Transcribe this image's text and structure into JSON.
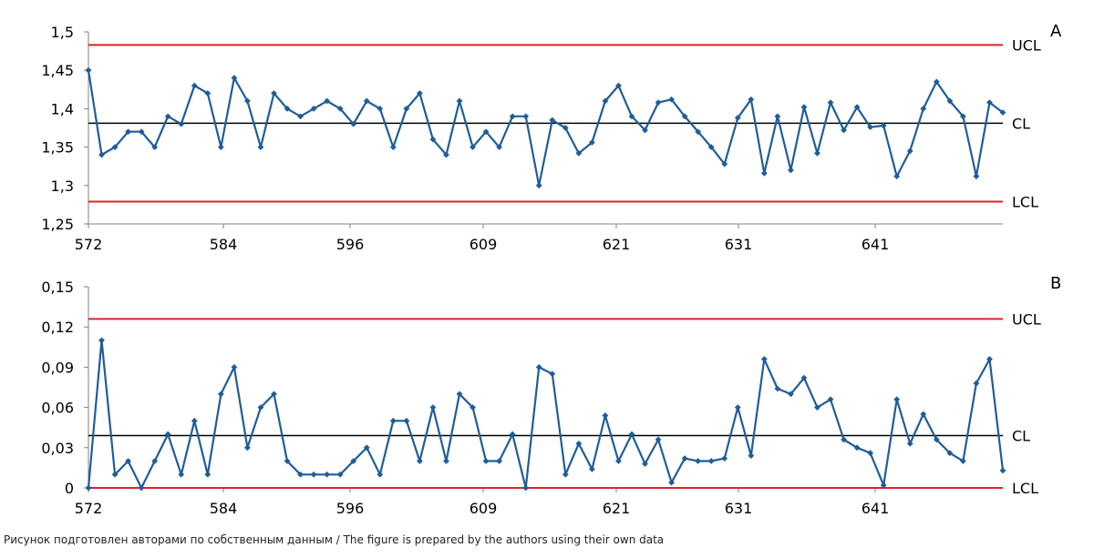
{
  "caption": "Рисунок подготовлен авторами по собственным данным / The figure is prepared by the authors using their own data",
  "colors": {
    "series": "#1f5d99",
    "control_limit": "#e0202a",
    "center_line": "#000000",
    "axis": "#808080"
  },
  "chart_data": [
    {
      "type": "line",
      "panel_label": "A",
      "x_tick_labels": [
        "572",
        "584",
        "596",
        "609",
        "621",
        "631",
        "641"
      ],
      "y_ticks": [
        "1,25",
        "1,3",
        "1,35",
        "1,4",
        "1,45",
        "1,5"
      ],
      "ylim": [
        1.25,
        1.5
      ],
      "control_lines": [
        {
          "label": "UCL",
          "value": 1.483,
          "kind": "limit"
        },
        {
          "label": "CL",
          "value": 1.381,
          "kind": "center"
        },
        {
          "label": "LCL",
          "value": 1.279,
          "kind": "limit"
        }
      ],
      "series": [
        {
          "values": [
            1.45,
            1.34,
            1.35,
            1.37,
            1.37,
            1.35,
            1.39,
            1.38,
            1.43,
            1.42,
            1.35,
            1.44,
            1.41,
            1.35,
            1.42,
            1.4,
            1.39,
            1.4,
            1.41,
            1.4,
            1.38,
            1.41,
            1.4,
            1.35,
            1.4,
            1.42,
            1.36,
            1.34,
            1.41,
            1.35,
            1.37,
            1.35,
            1.39,
            1.39,
            1.3,
            1.385,
            1.375,
            1.342,
            1.356,
            1.41,
            1.43,
            1.39,
            1.372,
            1.408,
            1.412,
            1.39,
            1.37,
            1.35,
            1.328,
            1.388,
            1.412,
            1.316,
            1.39,
            1.32,
            1.402,
            1.342,
            1.408,
            1.372,
            1.402,
            1.376,
            1.378,
            1.312,
            1.345,
            1.4,
            1.435,
            1.41,
            1.39,
            1.312,
            1.408,
            1.395
          ]
        }
      ]
    },
    {
      "type": "line",
      "panel_label": "B",
      "x_tick_labels": [
        "572",
        "584",
        "596",
        "609",
        "621",
        "631",
        "641"
      ],
      "y_ticks": [
        "0",
        "0,03",
        "0,06",
        "0,09",
        "0,12",
        "0,15"
      ],
      "ylim": [
        0,
        0.15
      ],
      "control_lines": [
        {
          "label": "UCL",
          "value": 0.126,
          "kind": "limit"
        },
        {
          "label": "CL",
          "value": 0.039,
          "kind": "center"
        },
        {
          "label": "LCL",
          "value": 0.0,
          "kind": "limit"
        }
      ],
      "series": [
        {
          "values": [
            0.0,
            0.11,
            0.01,
            0.02,
            0.0,
            0.02,
            0.04,
            0.01,
            0.05,
            0.01,
            0.07,
            0.09,
            0.03,
            0.06,
            0.07,
            0.02,
            0.01,
            0.01,
            0.01,
            0.01,
            0.02,
            0.03,
            0.01,
            0.05,
            0.05,
            0.02,
            0.06,
            0.02,
            0.07,
            0.06,
            0.02,
            0.02,
            0.04,
            0.0,
            0.09,
            0.085,
            0.01,
            0.033,
            0.014,
            0.054,
            0.02,
            0.04,
            0.018,
            0.036,
            0.004,
            0.022,
            0.02,
            0.02,
            0.022,
            0.06,
            0.024,
            0.096,
            0.074,
            0.07,
            0.082,
            0.06,
            0.066,
            0.036,
            0.03,
            0.026,
            0.002,
            0.066,
            0.033,
            0.055,
            0.036,
            0.026,
            0.02,
            0.078,
            0.096,
            0.013
          ]
        }
      ]
    }
  ]
}
